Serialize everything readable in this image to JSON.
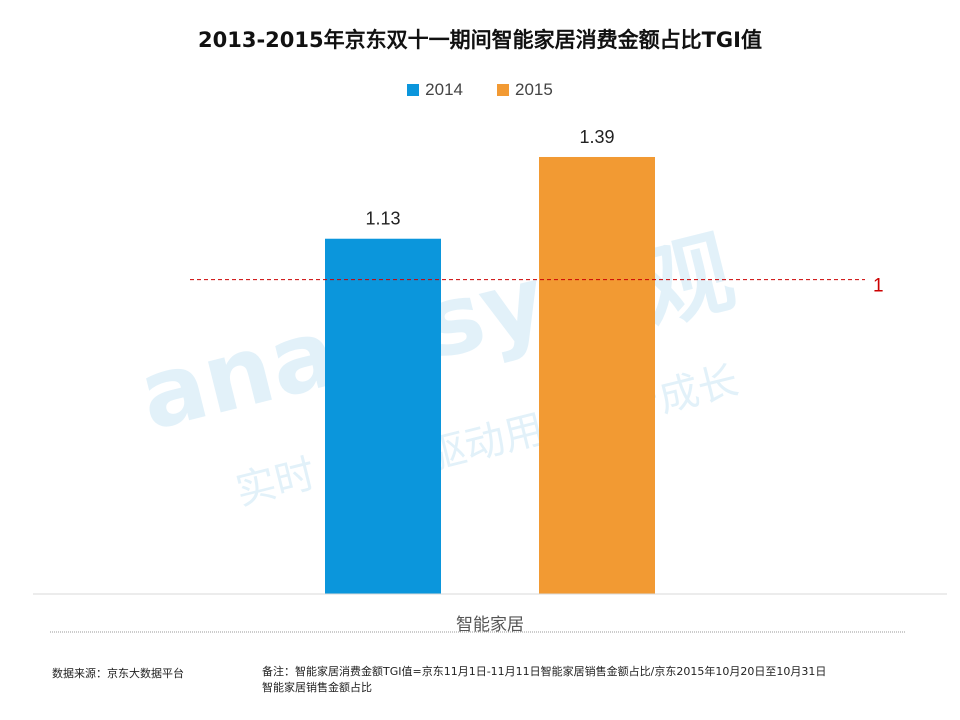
{
  "chart_data": {
    "type": "bar",
    "title": "2013-2015年京东双十一期间智能家居消费金额占比TGI值",
    "categories": [
      "智能家居"
    ],
    "series": [
      {
        "name": "2014",
        "values": [
          1.13
        ],
        "color": "#0b96dc",
        "label": "1.13"
      },
      {
        "name": "2015",
        "values": [
          1.39
        ],
        "color": "#f29a33",
        "label": "1.39"
      }
    ],
    "reference_line": {
      "value": 1,
      "label": "1",
      "color": "#cc0000"
    },
    "ylim": [
      0,
      1.5
    ],
    "xlabel": "",
    "ylabel": "",
    "legend_position": "top"
  },
  "watermark": {
    "brand_latin": "analysys",
    "brand_cn": "易观",
    "slogan_left": "实时",
    "slogan_right": "驱动用户资产成长"
  },
  "footer": {
    "source": "数据来源：京东大数据平台",
    "note_line1": "备注：智能家居消费金额TGI值=京东11月1日-11月11日智能家居销售金额占比/京东2015年10月20日至10月31日",
    "note_line2": "智能家居销售金额占比"
  }
}
